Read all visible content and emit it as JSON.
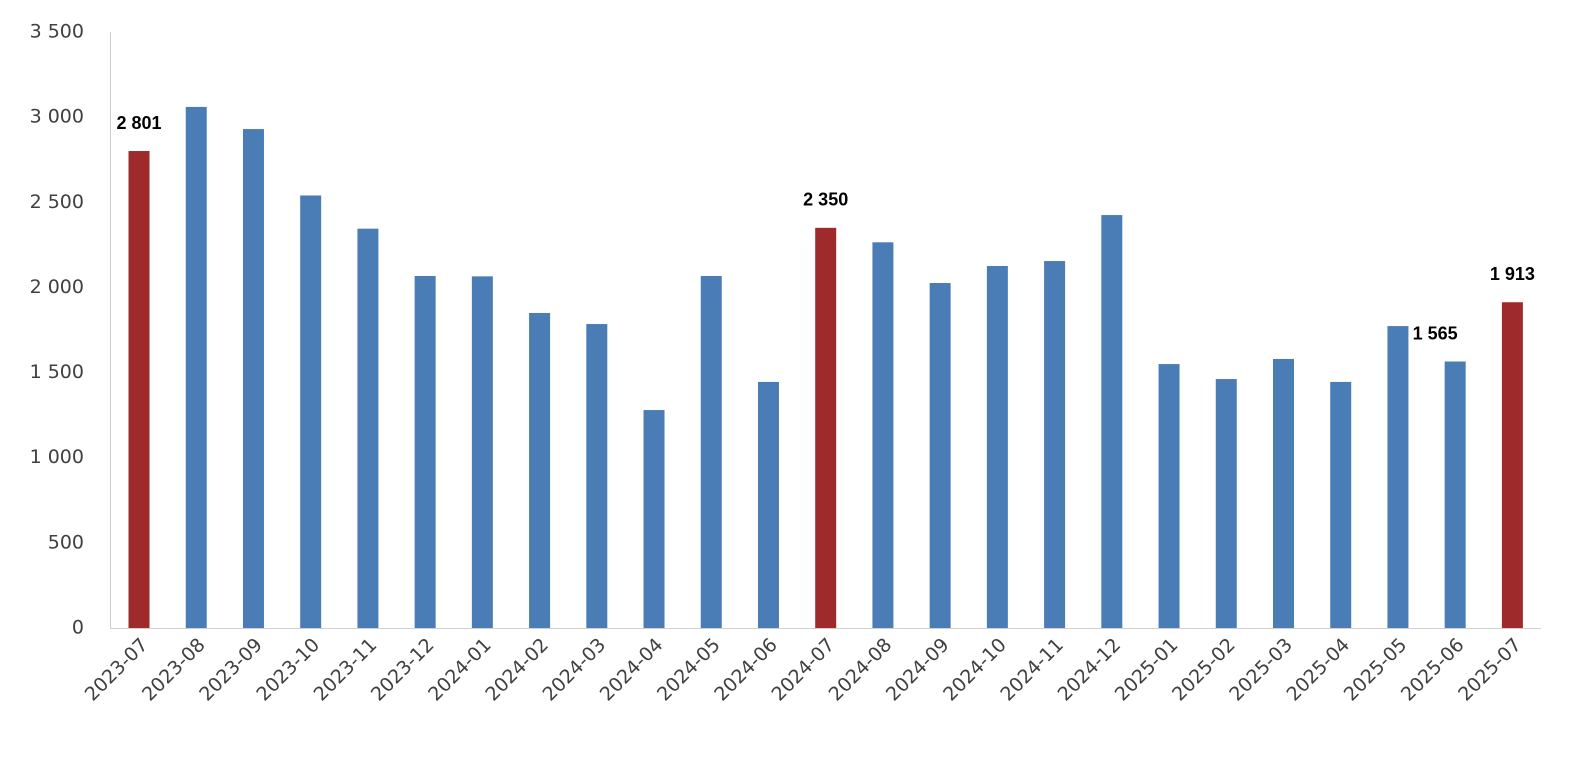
{
  "chart_data": {
    "type": "bar",
    "categories": [
      "2023-07",
      "2023-08",
      "2023-09",
      "2023-10",
      "2023-11",
      "2023-12",
      "2024-01",
      "2024-02",
      "2024-03",
      "2024-04",
      "2024-05",
      "2024-06",
      "2024-07",
      "2024-08",
      "2024-09",
      "2024-10",
      "2024-11",
      "2024-12",
      "2025-01",
      "2025-02",
      "2025-03",
      "2025-04",
      "2025-05",
      "2025-06",
      "2025-07"
    ],
    "values": [
      2801,
      3060,
      2930,
      2540,
      2345,
      2067,
      2065,
      1850,
      1785,
      1280,
      2067,
      1445,
      2350,
      2265,
      2026,
      2126,
      2155,
      2425,
      1550,
      1462,
      1580,
      1445,
      1773,
      1565,
      1913
    ],
    "value_labels": [
      "2 801",
      null,
      null,
      null,
      null,
      null,
      null,
      null,
      null,
      null,
      null,
      null,
      "2 350",
      null,
      null,
      null,
      null,
      null,
      null,
      null,
      null,
      null,
      null,
      "1 565",
      "1 913"
    ],
    "colors": [
      "#9e2a2b",
      "#4a7db5",
      "#4a7db5",
      "#4a7db5",
      "#4a7db5",
      "#4a7db5",
      "#4a7db5",
      "#4a7db5",
      "#4a7db5",
      "#4a7db5",
      "#4a7db5",
      "#4a7db5",
      "#9e2a2b",
      "#4a7db5",
      "#4a7db5",
      "#4a7db5",
      "#4a7db5",
      "#4a7db5",
      "#4a7db5",
      "#4a7db5",
      "#4a7db5",
      "#4a7db5",
      "#4a7db5",
      "#4a7db5",
      "#9e2a2b"
    ],
    "ylim": [
      0,
      3500
    ],
    "yticks": [
      0,
      500,
      {
        "value": 1000,
        "label": "1 000"
      },
      {
        "value": 1500,
        "label": "1 500"
      },
      {
        "value": 2000,
        "label": "2 000"
      },
      {
        "value": 2500,
        "label": "2 500"
      },
      {
        "value": 3000,
        "label": "3 000"
      },
      {
        "value": 3500,
        "label": "3 500"
      }
    ],
    "grid": false
  }
}
